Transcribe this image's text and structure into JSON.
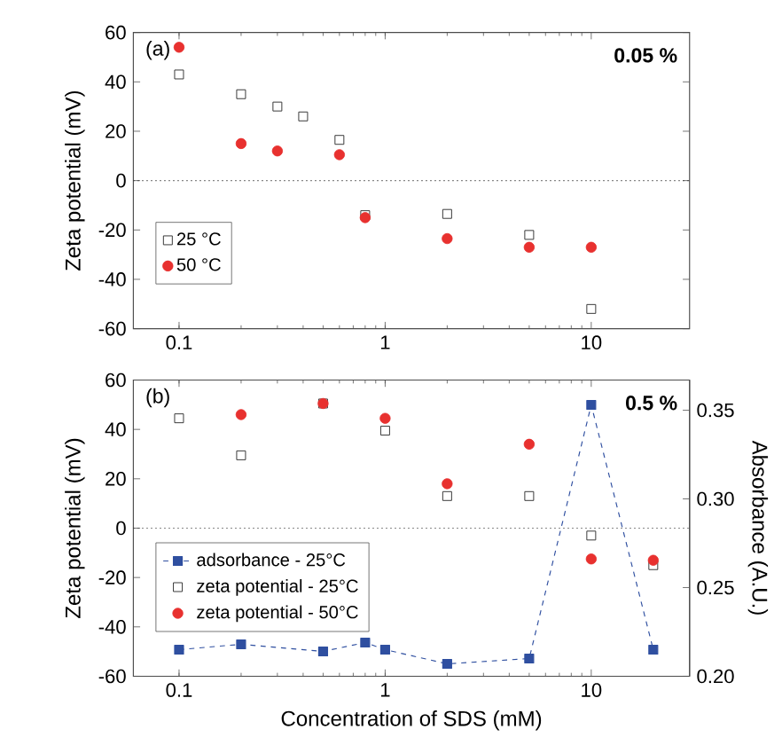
{
  "chart_data": [
    {
      "type": "scatter",
      "ylabel": "Zeta potential (mV)",
      "log": "x",
      "xlim": [
        0.06,
        30
      ],
      "xticks": [
        0.1,
        1,
        10
      ],
      "ylim": [
        -60,
        60
      ],
      "yticks": [
        -60,
        -40,
        -20,
        0,
        20,
        40,
        60
      ],
      "legend": "bottom left",
      "annotations": [
        "(a)",
        "0.05 %"
      ],
      "ref_lines": [
        {
          "axis": "y",
          "value": 0,
          "line_style": "dotted"
        }
      ],
      "series": [
        {
          "name": "25 °C",
          "color": "#333333",
          "marker": "square",
          "x": [
            0.1,
            0.2,
            0.3,
            0.4,
            0.6,
            0.8,
            2,
            5,
            10
          ],
          "values": [
            43,
            35,
            30,
            26,
            16.5,
            -14,
            -13.5,
            -22,
            -52
          ]
        },
        {
          "name": "50 °C",
          "color": "#e8312f",
          "marker": "circle",
          "x": [
            0.1,
            0.2,
            0.3,
            0.6,
            0.8,
            2,
            5,
            10
          ],
          "values": [
            54,
            15,
            12,
            10.5,
            -15,
            -23.5,
            -27,
            -27
          ]
        }
      ]
    },
    {
      "type": "scatter",
      "xlabel": "Concentration of SDS (mM)",
      "ylabel": "Zeta potential (mV)",
      "y2label": "Absorbance (A.U.)",
      "log": "x",
      "xlim": [
        0.06,
        30
      ],
      "xticks": [
        0.1,
        1,
        10
      ],
      "ylim": [
        -60,
        60
      ],
      "yticks": [
        -60,
        -40,
        -20,
        0,
        20,
        40,
        60
      ],
      "y2lim": [
        0.2,
        0.367
      ],
      "y2ticks": [
        {
          "value": 0.2,
          "label": "0.20"
        },
        {
          "value": 0.25,
          "label": "0.25"
        },
        {
          "value": 0.3,
          "label": "0.30"
        },
        {
          "value": 0.35,
          "label": "0.35"
        }
      ],
      "legend": "bottom left",
      "annotations": [
        "(b)",
        "0.5 %"
      ],
      "ref_lines": [
        {
          "axis": "y",
          "value": 0,
          "line_style": "dotted"
        }
      ],
      "series": [
        {
          "name": "adsorbance   - 25°C",
          "type": "line",
          "axis": "y2",
          "color": "#2f4fa0",
          "marker": "square",
          "line_style": "dashed",
          "x": [
            0.1,
            0.2,
            0.5,
            0.8,
            1,
            2,
            5,
            10,
            20
          ],
          "values": [
            0.215,
            0.218,
            0.214,
            0.219,
            0.215,
            0.207,
            0.21,
            0.353,
            0.215
          ]
        },
        {
          "name": "zeta potential - 25°C",
          "color": "#333333",
          "marker": "square",
          "x": [
            0.1,
            0.2,
            0.5,
            1,
            2,
            5,
            10,
            20
          ],
          "values": [
            44.5,
            29.5,
            50.5,
            39.5,
            13,
            13,
            -3,
            -15
          ]
        },
        {
          "name": "zeta potential - 50°C",
          "color": "#e8312f",
          "marker": "circle",
          "x": [
            0.2,
            0.5,
            1,
            2,
            5,
            10,
            20
          ],
          "values": [
            46,
            50.5,
            44.5,
            18,
            34,
            -12.5,
            -13
          ]
        }
      ]
    }
  ]
}
